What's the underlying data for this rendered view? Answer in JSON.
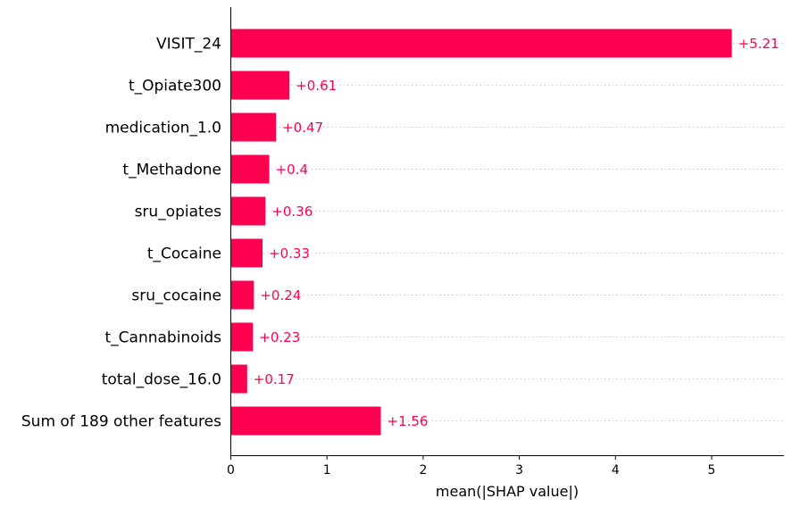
{
  "chart_data": {
    "type": "bar",
    "orientation": "horizontal",
    "categories": [
      "VISIT_24",
      "t_Opiate300",
      "medication_1.0",
      "t_Methadone",
      "sru_opiates",
      "t_Cocaine",
      "sru_cocaine",
      "t_Cannabinoids",
      "total_dose_16.0",
      "Sum of 189 other features"
    ],
    "values": [
      5.21,
      0.61,
      0.47,
      0.4,
      0.36,
      0.33,
      0.24,
      0.23,
      0.17,
      1.56
    ],
    "value_labels": [
      "+5.21",
      "+0.61",
      "+0.47",
      "+0.4",
      "+0.36",
      "+0.33",
      "+0.24",
      "+0.23",
      "+0.17",
      "+1.56"
    ],
    "xlabel": "mean(|SHAP value|)",
    "ylabel": "",
    "xlim": [
      0,
      5.73
    ],
    "xticks": [
      0,
      1,
      2,
      3,
      4,
      5
    ],
    "grid": "dotted horizontal row guides",
    "colors": {
      "bar": "#ff0051",
      "value_label": "#ff0051",
      "axis": "#000000",
      "grid": "#cccccc",
      "text": "#000000"
    }
  }
}
